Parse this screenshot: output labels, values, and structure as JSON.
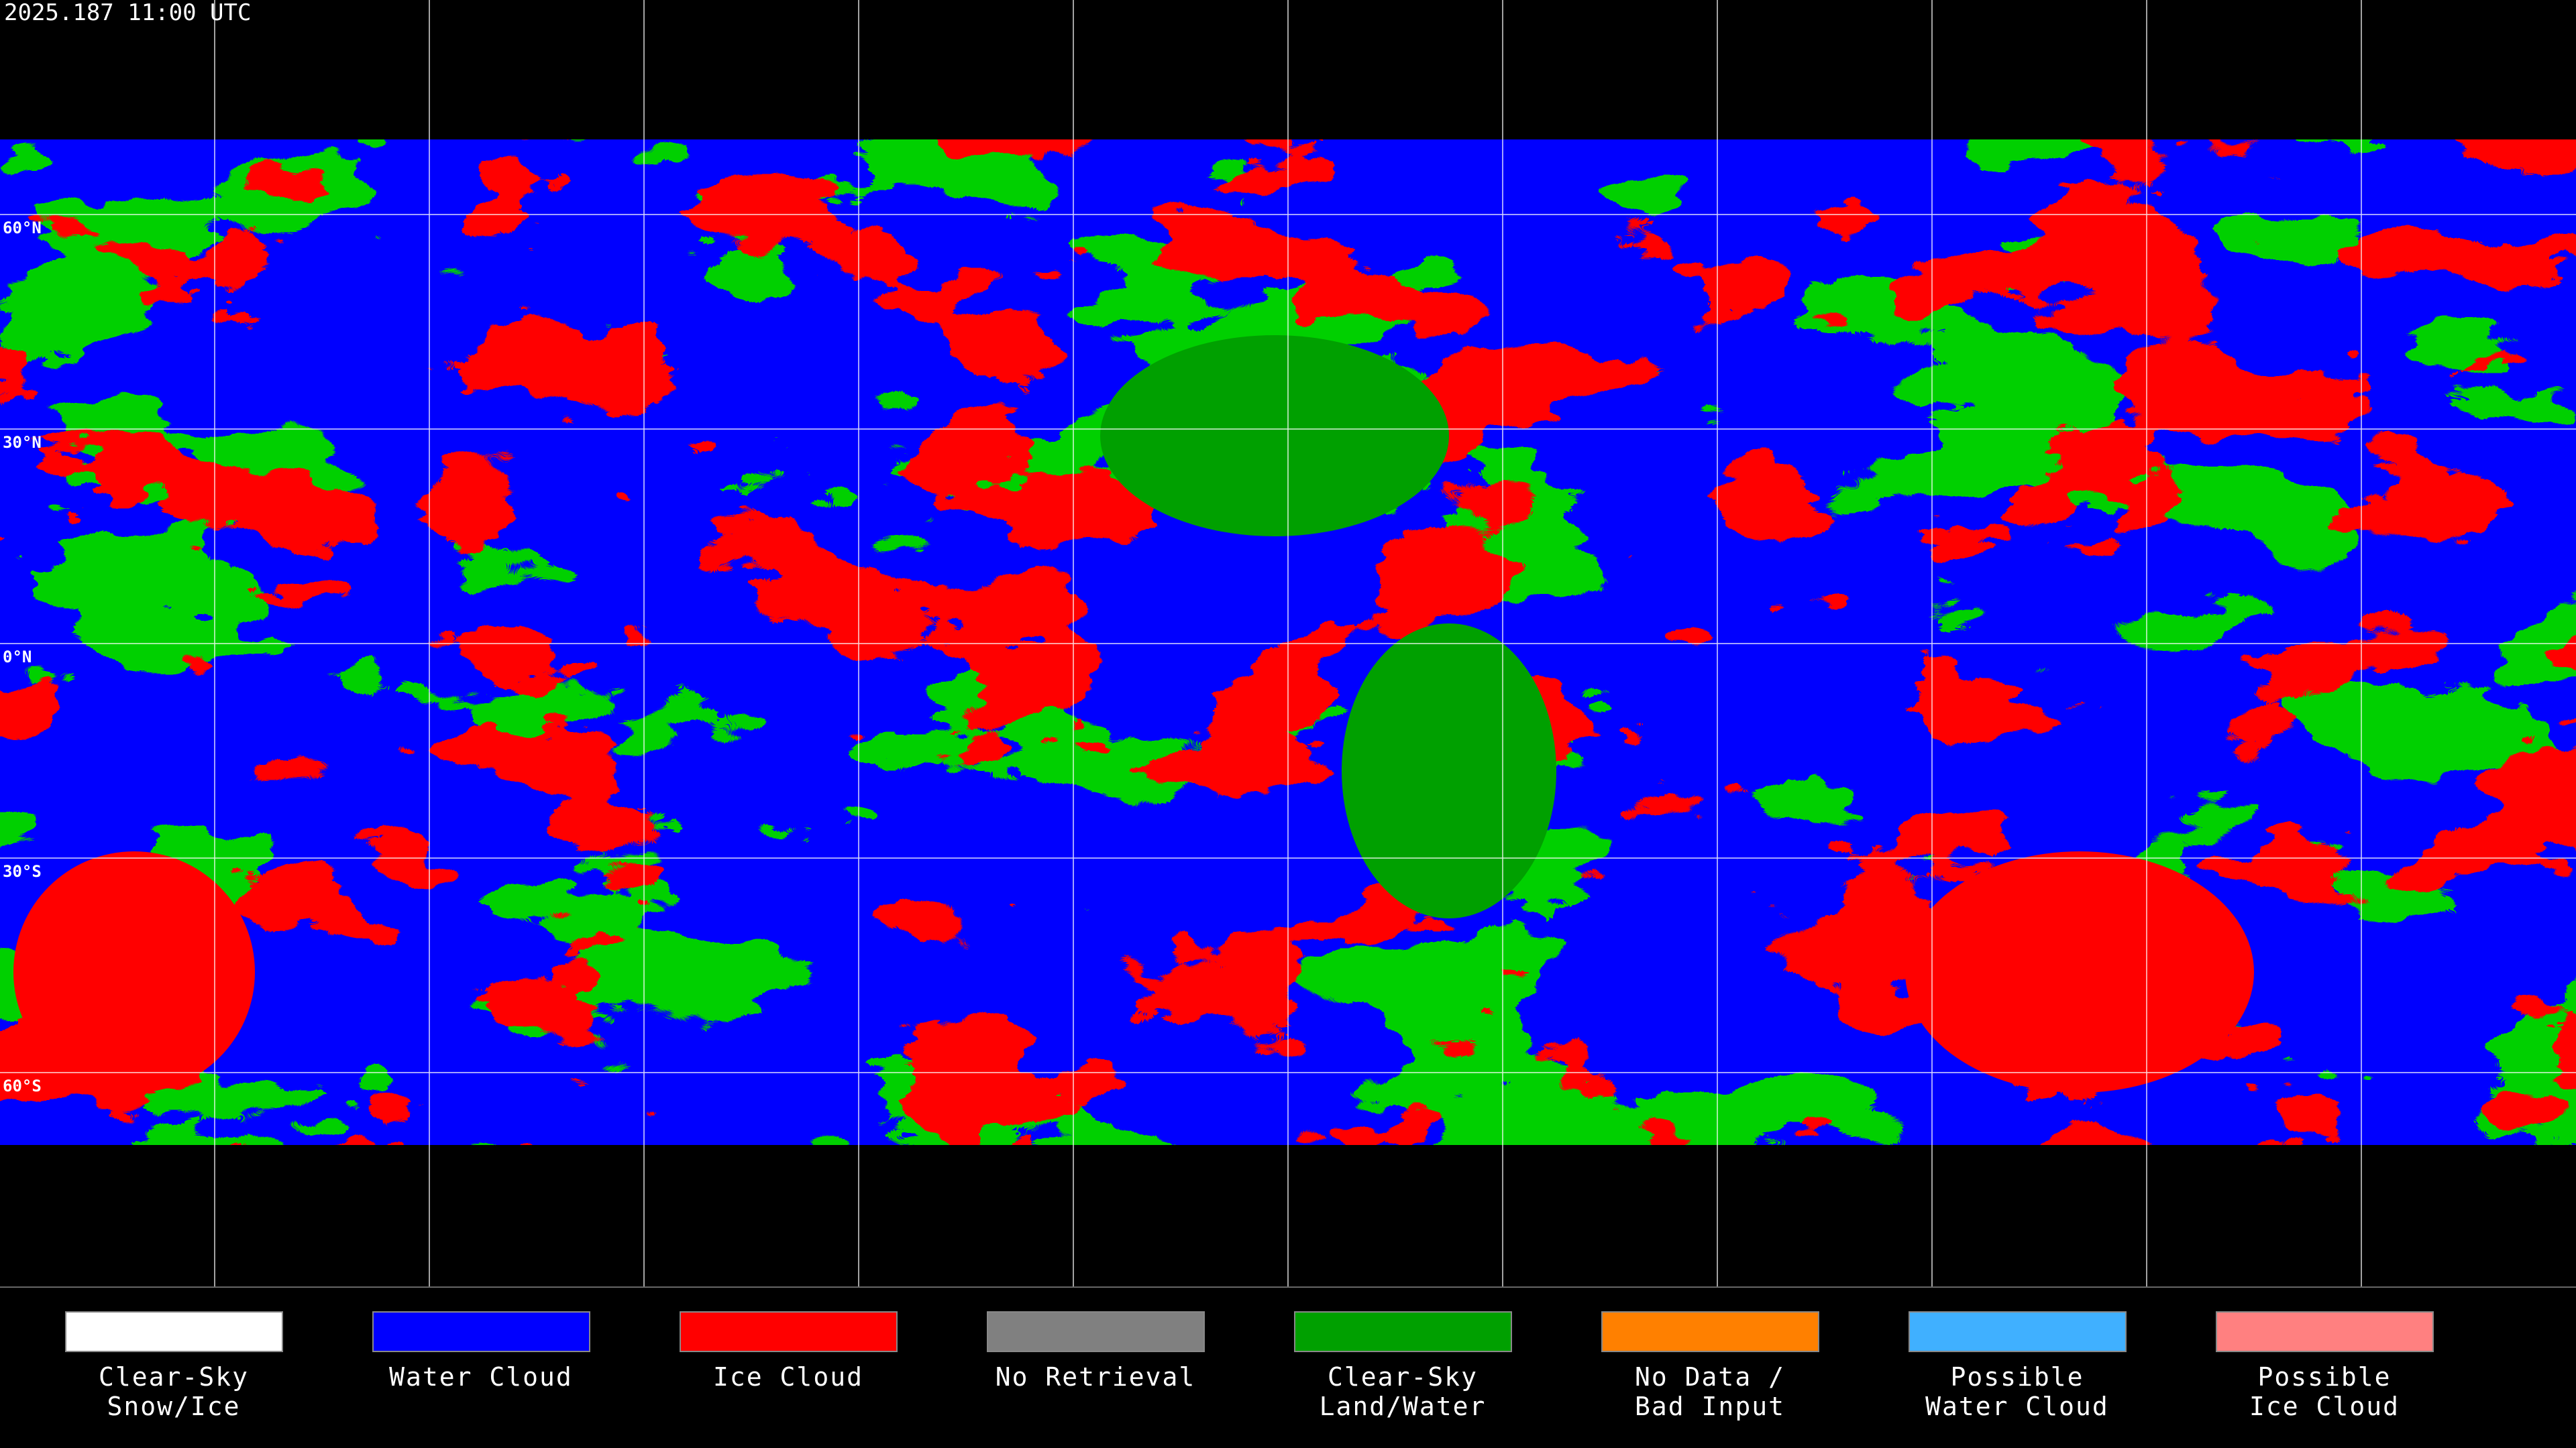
{
  "header": {
    "timestamp": "2025.187 11:00 UTC"
  },
  "map": {
    "latitude_labels": [
      "60°N",
      "30°N",
      "0°N",
      "30°S",
      "60°S"
    ]
  },
  "legend": [
    {
      "label_lines": [
        "Clear-Sky",
        "Snow/Ice"
      ],
      "color": "#ffffff"
    },
    {
      "label_lines": [
        "Water Cloud"
      ],
      "color": "#0000ff"
    },
    {
      "label_lines": [
        "Ice Cloud"
      ],
      "color": "#ff0000"
    },
    {
      "label_lines": [
        "No Retrieval"
      ],
      "color": "#808080"
    },
    {
      "label_lines": [
        "Clear-Sky",
        "Land/Water"
      ],
      "color": "#00a000"
    },
    {
      "label_lines": [
        "No Data /",
        "Bad Input"
      ],
      "color": "#ff8000"
    },
    {
      "label_lines": [
        "Possible",
        "Water Cloud"
      ],
      "color": "#40b0ff"
    },
    {
      "label_lines": [
        "Possible",
        "Ice Cloud"
      ],
      "color": "#ff8080"
    }
  ]
}
